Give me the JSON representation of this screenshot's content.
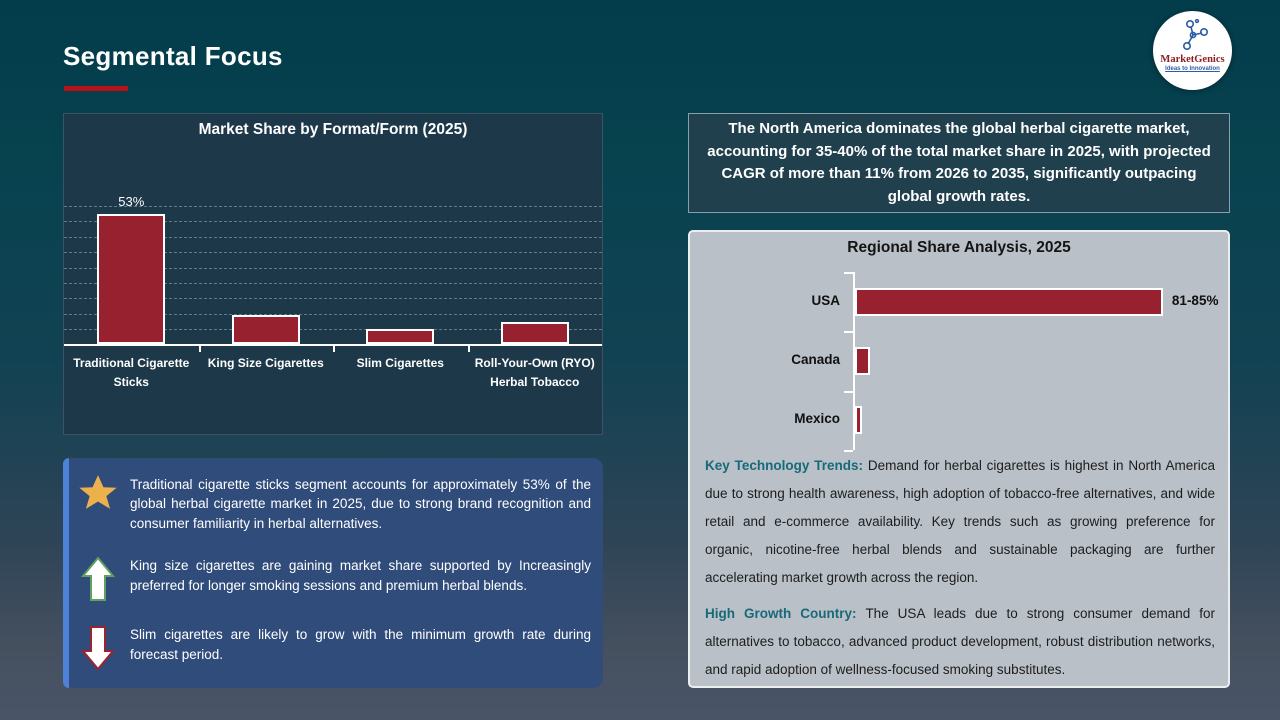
{
  "header": {
    "title": "Segmental Focus",
    "logo_name": "MarketGenics",
    "logo_tagline": "Ideas to Innovation"
  },
  "callout": {
    "text": "The North America dominates the global herbal cigarette market, accounting for 35-40% of the total market share in 2025, with projected CAGR of more than 11% from 2026 to 2035, significantly outpacing global growth rates."
  },
  "chart_data": [
    {
      "type": "bar",
      "orientation": "vertical",
      "title": "Market Share by Format/Form (2025)",
      "categories": [
        "Traditional Cigarette Sticks",
        "King Size Cigarettes",
        "Slim Cigarettes",
        "Roll-Your-Own (RYO) Herbal Tobacco"
      ],
      "values": [
        53,
        12,
        6,
        9
      ],
      "data_labels": [
        "53%",
        "",
        "",
        ""
      ],
      "unit": "%",
      "ylim": [
        0,
        56
      ],
      "grid": "dashed-horizontal",
      "legend": "none",
      "bar_color": "#97212f"
    },
    {
      "type": "bar",
      "orientation": "horizontal",
      "title": "Regional Share Analysis, 2025",
      "categories": [
        "USA",
        "Canada",
        "Mexico"
      ],
      "values": [
        83,
        4,
        2
      ],
      "data_labels": [
        "81-85%",
        "",
        ""
      ],
      "unit": "%",
      "xlim": [
        0,
        90
      ],
      "grid": "off",
      "legend": "none",
      "bar_color": "#97212f"
    }
  ],
  "insights": [
    {
      "icon": "star-icon",
      "text": "Traditional cigarette sticks segment accounts for approximately 53% of the global herbal cigarette market in 2025, due to strong brand recognition and consumer familiarity in herbal alternatives."
    },
    {
      "icon": "up-arrow-icon",
      "text": "King size cigarettes are gaining market share supported by Increasingly preferred for longer smoking sessions and premium herbal blends."
    },
    {
      "icon": "down-arrow-icon",
      "text": "Slim cigarettes are likely to grow with the minimum growth rate during forecast period."
    }
  ],
  "trends": [
    {
      "label": "Key Technology Trends:",
      "text": "Demand for herbal cigarettes is highest in North America due to strong health awareness, high adoption of tobacco-free alternatives, and wide retail and e-commerce availability. Key trends such as growing preference for organic, nicotine-free herbal blends and sustainable packaging are further accelerating market growth across the region."
    },
    {
      "label": "High Growth Country:",
      "text": "The USA leads due to strong consumer demand for alternatives to tobacco, advanced product development, robust distribution networks, and rapid adoption of wellness-focused smoking substitutes."
    }
  ],
  "colors": {
    "bar": "#97212f",
    "title_underline": "#b5121a",
    "dark_panel": "#1d3849",
    "gray_panel": "#b9c0c8",
    "insight_box": "#304c7b",
    "insight_stripe": "#4d82d8",
    "trend_label": "#186a78",
    "star_gold": "#ecb04c",
    "up_arrow_stroke": "#5fa15e",
    "down_arrow_stroke": "#9b2433"
  }
}
